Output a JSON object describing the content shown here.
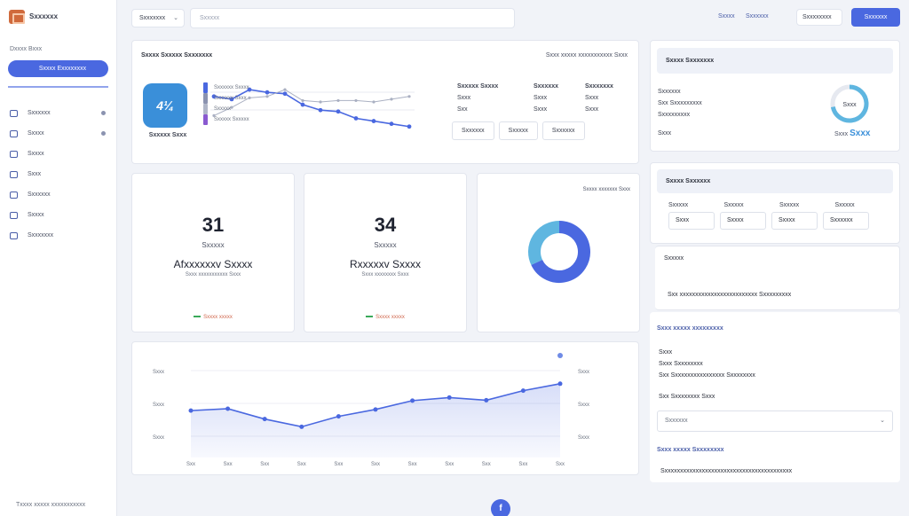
{
  "sidebar": {
    "app_name": "Sxxxxxx",
    "section_label": "Dxxxx Bxxx",
    "primary_button": "Sxxxx Exxxxxxxx",
    "items": [
      {
        "label": "Sxxxxxx",
        "has_dot": true
      },
      {
        "label": "Sxxxx",
        "has_dot": true
      },
      {
        "label": "Sxxxx",
        "has_dot": false
      },
      {
        "label": "Sxxx",
        "has_dot": false
      },
      {
        "label": "Sxxxxxx",
        "has_dot": false
      },
      {
        "label": "Sxxxx",
        "has_dot": false
      },
      {
        "label": "Sxxxxxxx",
        "has_dot": false
      }
    ],
    "footer": "Txxxx xxxxx xxxxxxxxxxx"
  },
  "topbar": {
    "select_label": "Sxxxxxxx",
    "search_placeholder": "Sxxxxx",
    "link_1": "Sxxxx",
    "link_2": "Sxxxxxx",
    "pill_label": "Sxxxxxxxx",
    "button_label": "Sxxxxxx"
  },
  "overview_card": {
    "title": "Sxxxx Sxxxxx Sxxxxxxx",
    "subtitle": "Sxxx xxxxx xxxxxxxxxxx Sxxx",
    "tile_text": "4¼",
    "tile_label": "Sxxxxx Sxxx",
    "legend": [
      "Sxxxxxx Sxxxx",
      "Sxxxxxx Sxxx",
      "Sxxxxx",
      "Sxxxxx Sxxxxx"
    ],
    "table_headers": [
      "Sxxxxx Sxxxx",
      "Sxxxxxx",
      "Sxxxxxxx"
    ],
    "table_rows": [
      [
        "Sxxx",
        "Sxxx",
        "Sxxx"
      ],
      [
        "Sxx",
        "Sxxx",
        "Sxxx"
      ]
    ],
    "buttons": [
      "Sxxxxx",
      "Sxxxxx",
      "Sxxxxxx"
    ],
    "chip_button": "Sxxxxxx"
  },
  "stats": [
    {
      "number": "31",
      "unit": "Sxxxxx",
      "label": "Afxxxxxxv Sxxxx",
      "desc": "Sxxx xxxxxxxxxxx Sxxx",
      "trend": "Sxxxx xxxxx"
    },
    {
      "number": "34",
      "unit": "Sxxxxx",
      "label": "Rxxxxxv Sxxxx",
      "desc": "Sxxx xxxxxxxx Sxxx",
      "trend": "Sxxxx xxxxx"
    }
  ],
  "donut_card": {
    "legend": "Sxxxx xxxxxxx Sxxx"
  },
  "right_panel_1": {
    "title": "Sxxxx Sxxxxxxx",
    "lines": [
      "Sxxxxxx",
      "Sxx Sxxxxxxxxx",
      "Sxxxxxxxxx"
    ],
    "foot": "Sxxx",
    "ring_label": "Sxxx",
    "tag_prefix": "Sxxx",
    "tag_value": "Sxxx"
  },
  "right_panel_2": {
    "title": "Sxxxx Sxxxxxx",
    "cols": [
      "Sxxxxx",
      "Sxxxxx",
      "Sxxxxx",
      "Sxxxxx"
    ],
    "chips": [
      "Sxxx",
      "Sxxxx",
      "Sxxxx",
      "Sxxxxxx"
    ]
  },
  "right_panel_3": {
    "title": "Sxxxxx",
    "line": "Sxx xxxxxxxxxxxxxxxxxxxxxxxxx Sxxxxxxxxx"
  },
  "right_panel_4": {
    "link_1": "Sxxx xxxxx xxxxxxxxx",
    "lines": [
      "Sxxx",
      "Sxxx Sxxxxxxxx",
      "Sxx Sxxxxxxxxxxxxxxxx Sxxxxxxxx"
    ],
    "sub": "Sxx Sxxxxxxxx Sxxx",
    "select_value": "Sxxxxxx",
    "link_2": "Sxxx xxxxx Sxxxxxxxx",
    "foot": "Sxxxxxxxxxxxxxxxxxxxxxxxxxxxxxxxxxxxxxxxxx"
  },
  "fab_label": "f",
  "chart_data": [
    {
      "type": "line",
      "series": [
        {
          "values": [
            28,
            26,
            33,
            31,
            30,
            22,
            18,
            17,
            12,
            10,
            8,
            6
          ]
        },
        {
          "values": [
            14,
            20,
            27,
            28,
            33,
            25,
            24,
            25,
            25,
            24,
            26,
            28
          ]
        }
      ],
      "ylim": [
        0,
        35
      ]
    },
    {
      "type": "pie",
      "values": [
        68,
        32
      ],
      "colors": [
        "#4a68e0",
        "#5fb6e0"
      ]
    },
    {
      "type": "area",
      "x": [
        "Sxx",
        "Sxx",
        "Sxx",
        "Sxx",
        "Sxx",
        "Sxx",
        "Sxx",
        "Sxx",
        "Sxx",
        "Sxx",
        "Sxx"
      ],
      "values": [
        420,
        470,
        200,
        0,
        270,
        450,
        680,
        760,
        690,
        940,
        1120
      ],
      "ytick_labels_left": [
        "Sxxx",
        "Sxxx",
        "Sxxx"
      ],
      "ytick_labels_right": [
        "Sxxx",
        "Sxxx",
        "Sxxx"
      ],
      "ylim": [
        -800,
        1600
      ],
      "color": "#4a68e0"
    }
  ],
  "ring_value": 0.72
}
